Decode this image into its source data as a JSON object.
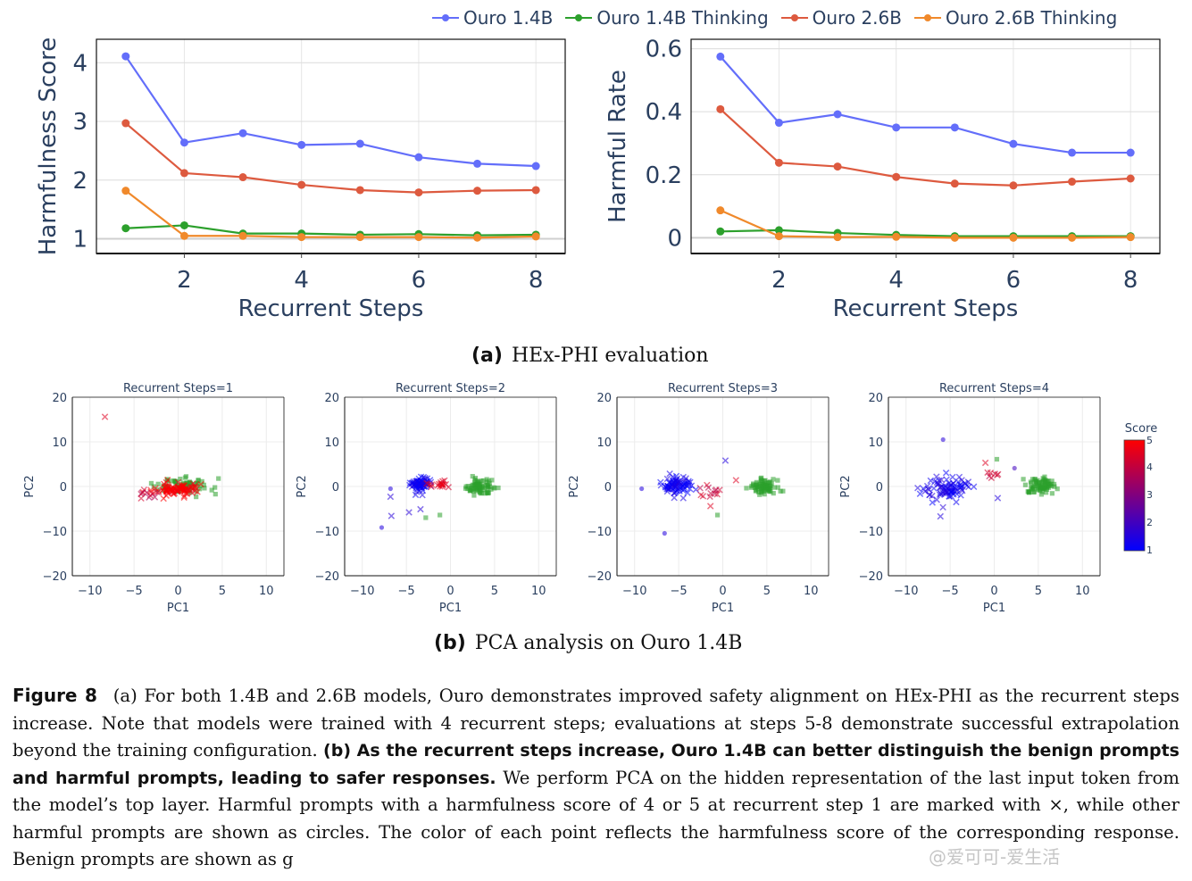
{
  "legend": [
    {
      "label": "Ouro 1.4B",
      "color": "#636efa"
    },
    {
      "label": "Ouro 1.4B Thinking",
      "color": "#2ca02c"
    },
    {
      "label": "Ouro 2.6B",
      "color": "#dd5a3f"
    },
    {
      "label": "Ouro 2.6B Thinking",
      "color": "#f0892b"
    }
  ],
  "chart_data": [
    {
      "type": "line",
      "title": "",
      "xlabel": "Recurrent Steps",
      "ylabel": "Harmfulness Score",
      "x": [
        1,
        2,
        3,
        4,
        5,
        6,
        7,
        8
      ],
      "xticks": [
        2,
        4,
        6,
        8
      ],
      "yticks": [
        1,
        2,
        3,
        4
      ],
      "xlim": [
        0.5,
        8.5
      ],
      "ylim": [
        0.75,
        4.4
      ],
      "grid": true,
      "legend_position": "top-right",
      "series": [
        {
          "name": "Ouro 1.4B",
          "color": "#636efa",
          "values": [
            4.11,
            2.64,
            2.8,
            2.6,
            2.62,
            2.39,
            2.28,
            2.24
          ]
        },
        {
          "name": "Ouro 1.4B Thinking",
          "color": "#2ca02c",
          "values": [
            1.18,
            1.23,
            1.09,
            1.09,
            1.07,
            1.08,
            1.06,
            1.07
          ]
        },
        {
          "name": "Ouro 2.6B",
          "color": "#dd5a3f",
          "values": [
            2.97,
            2.12,
            2.05,
            1.92,
            1.83,
            1.79,
            1.82,
            1.83
          ]
        },
        {
          "name": "Ouro 2.6B Thinking",
          "color": "#f0892b",
          "values": [
            1.82,
            1.05,
            1.05,
            1.03,
            1.03,
            1.03,
            1.02,
            1.04
          ]
        }
      ]
    },
    {
      "type": "line",
      "title": "",
      "xlabel": "Recurrent Steps",
      "ylabel": "Harmful Rate",
      "x": [
        1,
        2,
        3,
        4,
        5,
        6,
        7,
        8
      ],
      "xticks": [
        2,
        4,
        6,
        8
      ],
      "yticks": [
        0,
        0.2,
        0.4,
        0.6
      ],
      "ytick_labels": [
        "0",
        "0.2",
        "0.4",
        "0.6"
      ],
      "xlim": [
        0.5,
        8.5
      ],
      "ylim": [
        -0.05,
        0.63
      ],
      "grid": true,
      "series": [
        {
          "name": "Ouro 1.4B",
          "color": "#636efa",
          "values": [
            0.575,
            0.365,
            0.392,
            0.35,
            0.35,
            0.298,
            0.27,
            0.27
          ]
        },
        {
          "name": "Ouro 1.4B Thinking",
          "color": "#2ca02c",
          "values": [
            0.02,
            0.024,
            0.015,
            0.009,
            0.005,
            0.005,
            0.005,
            0.005
          ]
        },
        {
          "name": "Ouro 2.6B",
          "color": "#dd5a3f",
          "values": [
            0.408,
            0.238,
            0.226,
            0.193,
            0.172,
            0.166,
            0.178,
            0.188
          ]
        },
        {
          "name": "Ouro 2.6B Thinking",
          "color": "#f0892b",
          "values": [
            0.087,
            0.005,
            0.002,
            0.003,
            0.0,
            0.0,
            0.0,
            0.002
          ]
        }
      ]
    },
    {
      "type": "scatter",
      "title": "Recurrent Steps=1",
      "xlabel": "PC1",
      "ylabel": "PC2",
      "xlim": [
        -12,
        12
      ],
      "ylim": [
        -20,
        20
      ],
      "xticks": [
        -10,
        -5,
        0,
        5,
        10
      ],
      "yticks": [
        -20,
        -10,
        0,
        10,
        20
      ],
      "clusters": [
        {
          "kind": "benign",
          "marker": "square",
          "color": "#2ca02c",
          "center": [
            0.5,
            0
          ],
          "spread": [
            2.6,
            1.4
          ],
          "n": 70
        },
        {
          "kind": "harmful",
          "marker": "x",
          "score": 5,
          "center": [
            -0.3,
            -0.6
          ],
          "spread": [
            2.4,
            1.2
          ],
          "n": 90
        },
        {
          "kind": "harmful",
          "marker": "x",
          "score": 4,
          "center": [
            -3.5,
            -1.5
          ],
          "spread": [
            1.0,
            1.0
          ],
          "n": 10
        }
      ],
      "outliers": [
        {
          "x": -8.3,
          "y": 15.6,
          "marker": "x",
          "score": 4.5
        }
      ]
    },
    {
      "type": "scatter",
      "title": "Recurrent Steps=2",
      "xlabel": "PC1",
      "ylabel": "PC2",
      "xlim": [
        -12,
        12
      ],
      "ylim": [
        -20,
        20
      ],
      "xticks": [
        -10,
        -5,
        0,
        5,
        10
      ],
      "yticks": [
        -20,
        -10,
        0,
        10,
        20
      ],
      "clusters": [
        {
          "kind": "benign",
          "marker": "square",
          "color": "#2ca02c",
          "center": [
            3.2,
            0
          ],
          "spread": [
            1.3,
            1.3
          ],
          "n": 75
        },
        {
          "kind": "harmful",
          "marker": "x",
          "score": 1.2,
          "center": [
            -3.4,
            0.6
          ],
          "spread": [
            0.9,
            1.2
          ],
          "n": 70
        },
        {
          "kind": "harmful",
          "marker": "x",
          "score": 4.5,
          "center": [
            -1.3,
            0.5
          ],
          "spread": [
            1.0,
            1.0
          ],
          "n": 18
        }
      ],
      "outliers": [
        {
          "x": -7.8,
          "y": -9.2,
          "marker": "circle",
          "score": 1.5
        },
        {
          "x": -6.7,
          "y": -6.6,
          "marker": "x",
          "score": 1.6
        },
        {
          "x": -4.7,
          "y": -5.8,
          "marker": "x",
          "score": 1.6
        },
        {
          "x": -3.4,
          "y": -5.1,
          "marker": "x",
          "score": 1.6
        },
        {
          "x": -6.8,
          "y": -2.3,
          "marker": "x",
          "score": 1.6
        },
        {
          "x": -6.8,
          "y": -0.5,
          "marker": "circle",
          "score": 1.5
        },
        {
          "x": -1.2,
          "y": -6.4,
          "marker": "square",
          "color": "#2ca02c"
        },
        {
          "x": -2.8,
          "y": -7.0,
          "marker": "square",
          "color": "#2ca02c"
        }
      ]
    },
    {
      "type": "scatter",
      "title": "Recurrent Steps=3",
      "xlabel": "PC1",
      "ylabel": "PC2",
      "xlim": [
        -12,
        12
      ],
      "ylim": [
        -20,
        20
      ],
      "xticks": [
        -10,
        -5,
        0,
        5,
        10
      ],
      "yticks": [
        -20,
        -10,
        0,
        10,
        20
      ],
      "clusters": [
        {
          "kind": "benign",
          "marker": "square",
          "color": "#2ca02c",
          "center": [
            4.6,
            0
          ],
          "spread": [
            1.3,
            1.2
          ],
          "n": 80
        },
        {
          "kind": "harmful",
          "marker": "x",
          "score": 1.2,
          "center": [
            -5.2,
            0.4
          ],
          "spread": [
            1.5,
            1.6
          ],
          "n": 80
        },
        {
          "kind": "harmful",
          "marker": "x",
          "score": 4.2,
          "center": [
            -1.3,
            -0.8
          ],
          "spread": [
            1.2,
            1.2
          ],
          "n": 12
        }
      ],
      "outliers": [
        {
          "x": 0.3,
          "y": 5.8,
          "marker": "x",
          "score": 1.5
        },
        {
          "x": -6.6,
          "y": -10.5,
          "marker": "circle",
          "score": 1.5
        },
        {
          "x": -9.2,
          "y": -0.5,
          "marker": "circle",
          "score": 1.5
        },
        {
          "x": -1.4,
          "y": -4.4,
          "marker": "x",
          "score": 4.5
        },
        {
          "x": -0.6,
          "y": -6.4,
          "marker": "square",
          "color": "#2ca02c"
        },
        {
          "x": 1.5,
          "y": 1.4,
          "marker": "x",
          "score": 4.5
        }
      ]
    },
    {
      "type": "scatter",
      "title": "Recurrent Steps=4",
      "xlabel": "PC1",
      "ylabel": "PC2",
      "xlim": [
        -12,
        12
      ],
      "ylim": [
        -20,
        20
      ],
      "xticks": [
        -10,
        -5,
        0,
        5,
        10
      ],
      "yticks": [
        -20,
        -10,
        0,
        10,
        20
      ],
      "clusters": [
        {
          "kind": "benign",
          "marker": "square",
          "color": "#2ca02c",
          "center": [
            5.3,
            0
          ],
          "spread": [
            1.3,
            1.7
          ],
          "n": 80
        },
        {
          "kind": "harmful",
          "marker": "x",
          "score": 1.3,
          "center": [
            -5.6,
            -0.5
          ],
          "spread": [
            2.0,
            2.4
          ],
          "n": 85
        },
        {
          "kind": "harmful",
          "marker": "x",
          "score": 4.3,
          "center": [
            0.2,
            2.6
          ],
          "spread": [
            0.8,
            1.3
          ],
          "n": 7
        }
      ],
      "outliers": [
        {
          "x": -5.8,
          "y": 10.5,
          "marker": "circle",
          "score": 1.6
        },
        {
          "x": -1.0,
          "y": 5.3,
          "marker": "x",
          "score": 4.5
        },
        {
          "x": 2.3,
          "y": 4.1,
          "marker": "circle",
          "score": 2.0
        },
        {
          "x": 0.3,
          "y": 6.1,
          "marker": "square",
          "color": "#2ca02c"
        },
        {
          "x": 0.4,
          "y": -2.6,
          "marker": "x",
          "score": 1.5
        },
        {
          "x": -6.1,
          "y": -6.7,
          "marker": "x",
          "score": 1.5
        }
      ]
    }
  ],
  "colorbar": {
    "title": "Score",
    "ticks": [
      "5",
      "4",
      "3",
      "2",
      "1"
    ],
    "range": [
      1,
      5
    ],
    "low_color": "#0000ff",
    "high_color": "#ff0000"
  },
  "subcaptions": {
    "a_label": "(a)",
    "a_text": "HEx-PHI evaluation",
    "b_label": "(b)",
    "b_text": "PCA analysis on Ouro 1.4B"
  },
  "caption": {
    "figure_label": "Figure 8",
    "part_a": "(a) For both 1.4B and 2.6B models, Ouro demonstrates improved safety alignment on HEx-PHI as the recurrent steps increase. Note that models were trained with 4 recurrent steps; evaluations at steps 5-8 demonstrate successful extrapolation beyond the training configuration.",
    "part_b_bold": "(b) As the recurrent steps increase, Ouro 1.4B can better distinguish the benign prompts and harmful prompts, leading to safer responses.",
    "part_b_rest": "We perform PCA on the hidden representation of the last input token from the model’s top layer. Harmful prompts with a harmfulness score of 4 or 5 at recurrent step 1 are marked with ×, while other harmful prompts are shown as circles. The color of each point reflects the harmfulness score of the corresponding response. Benign prompts are shown as g",
    "watermark": "@爱可可-爱生活"
  }
}
